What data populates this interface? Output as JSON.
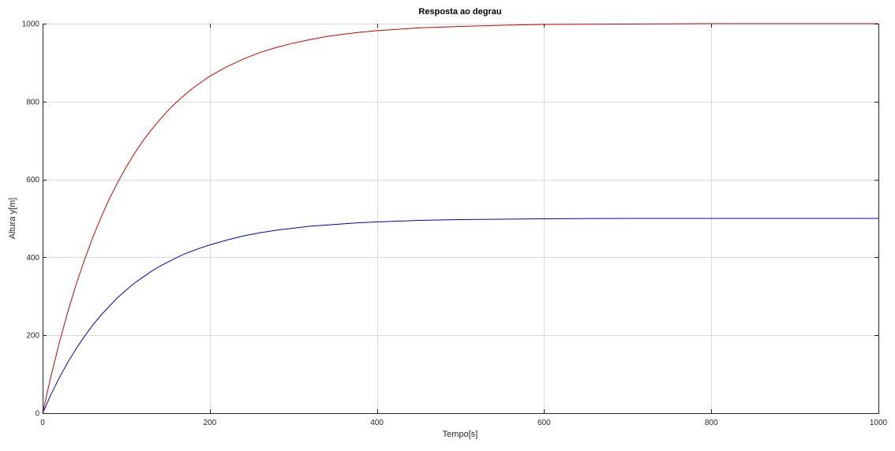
{
  "chart_data": {
    "type": "line",
    "title": "Resposta ao degrau",
    "xlabel": "Tempo[s]",
    "ylabel": "Altura y[m]",
    "xlim": [
      0,
      1000
    ],
    "ylim": [
      0,
      1000
    ],
    "xticks": [
      0,
      200,
      400,
      600,
      800,
      1000
    ],
    "yticks": [
      0,
      200,
      400,
      600,
      800,
      1000
    ],
    "xtick_labels": [
      "0",
      "200",
      "400",
      "600",
      "800",
      "1000"
    ],
    "ytick_labels": [
      "0",
      "200",
      "400",
      "600",
      "800",
      "1000"
    ],
    "grid": true,
    "legend": "none",
    "x": [
      0,
      10,
      20,
      30,
      40,
      50,
      60,
      70,
      80,
      90,
      100,
      110,
      120,
      130,
      140,
      150,
      160,
      170,
      180,
      190,
      200,
      220,
      240,
      260,
      280,
      300,
      320,
      340,
      360,
      380,
      400,
      450,
      500,
      550,
      600,
      700,
      800,
      900,
      1000
    ],
    "series": [
      {
        "color": "#cc0000",
        "values": [
          0,
          95,
          181,
          259,
          330,
          393,
          451,
          503,
          551,
          593,
          632,
          667,
          699,
          727,
          753,
          777,
          798,
          817,
          835,
          850,
          865,
          889,
          909,
          926,
          939,
          950,
          959,
          967,
          973,
          978,
          982,
          989,
          993,
          996,
          998,
          999,
          1000,
          1000,
          1000
        ]
      },
      {
        "color": "#0000cc",
        "values": [
          0,
          48,
          91,
          130,
          165,
          197,
          226,
          252,
          275,
          297,
          316,
          334,
          349,
          364,
          377,
          388,
          399,
          409,
          417,
          425,
          432,
          444,
          455,
          463,
          470,
          475,
          480,
          483,
          486,
          489,
          491,
          495,
          497,
          498,
          499,
          500,
          500,
          500,
          500
        ]
      }
    ]
  }
}
